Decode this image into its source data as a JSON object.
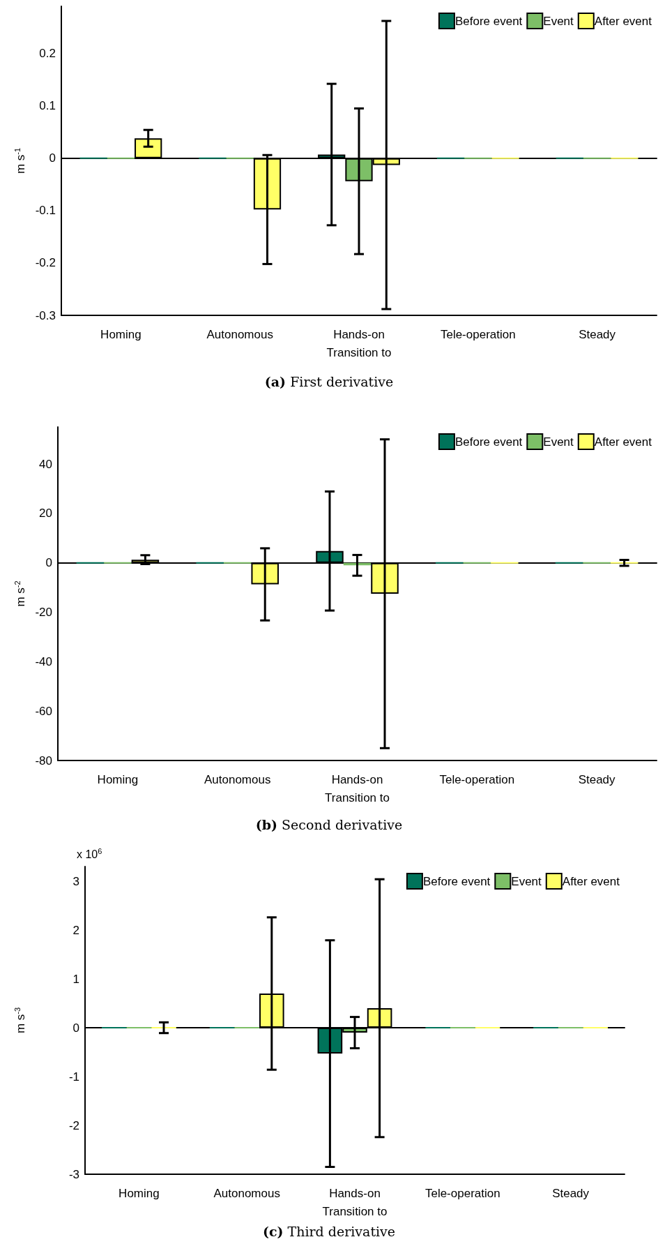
{
  "chart_data": [
    {
      "type": "bar",
      "title": "(a) First derivative",
      "ylabel": "m s$^{-1}$",
      "categories": [
        "Homing",
        "Autonomous",
        "Hands-on\nTransition to",
        "Tele-operation",
        "Steady"
      ],
      "series": [
        {
          "name": "Before event",
          "color": "#00735a",
          "values": [
            0,
            0,
            0.007,
            0,
            0
          ],
          "errors": [
            null,
            null,
            0.135,
            null,
            null
          ]
        },
        {
          "name": "Event",
          "color": "#7dbf67",
          "values": [
            0,
            0,
            -0.044,
            0,
            0
          ],
          "errors": [
            null,
            null,
            0.139,
            null,
            null
          ]
        },
        {
          "name": "After event",
          "color": "#ffff66",
          "values": [
            0.038,
            -0.098,
            -0.013,
            0,
            0
          ],
          "errors": [
            0.016,
            0.104,
            0.275,
            null,
            null
          ]
        }
      ],
      "ylim": [
        -0.3,
        0.29
      ],
      "yticks": [
        -0.3,
        -0.2,
        -0.1,
        0,
        0.1,
        0.2
      ],
      "legend": "top right"
    },
    {
      "type": "bar",
      "title": "(b) Second derivative",
      "ylabel": "m s$^{-2}$",
      "categories": [
        "Homing",
        "Autonomous",
        "Hands-on\nTransition to",
        "Tele-operation",
        "Steady"
      ],
      "series": [
        {
          "name": "Before event",
          "color": "#00735a",
          "values": [
            0,
            0,
            4.8,
            0,
            0
          ],
          "errors": [
            null,
            null,
            24.1,
            null,
            null
          ]
        },
        {
          "name": "Event",
          "color": "#7dbf67",
          "values": [
            0,
            0,
            -1,
            0,
            0
          ],
          "errors": [
            null,
            null,
            4.2,
            null,
            null
          ]
        },
        {
          "name": "After event",
          "color": "#ffff66",
          "values": [
            1.3,
            -8.7,
            -12.5,
            0,
            0
          ],
          "errors": [
            1.8,
            14.6,
            62.5,
            null,
            1.2
          ]
        }
      ],
      "ylim": [
        -80,
        55
      ],
      "yticks": [
        -80,
        -60,
        -40,
        -20,
        0,
        20,
        40
      ],
      "legend": "top right"
    },
    {
      "type": "bar",
      "title": "(c) Third derivative",
      "ylabel": "m s$^{-3}$",
      "annotations": [
        "x 10$^{6}$"
      ],
      "categories": [
        "Homing",
        "Autonomous",
        "Hands-on\nTransition to",
        "Tele-operation",
        "Steady"
      ],
      "series": [
        {
          "name": "Before event",
          "color": "#00735a",
          "values": [
            0,
            0,
            -0.53,
            0,
            0
          ],
          "errors": [
            null,
            null,
            2.32,
            null,
            null
          ]
        },
        {
          "name": "Event",
          "color": "#7dbf67",
          "values": [
            0,
            0,
            -0.1,
            0,
            0
          ],
          "errors": [
            null,
            null,
            0.32,
            null,
            null
          ]
        },
        {
          "name": "After event",
          "color": "#ffff66",
          "values": [
            0,
            0.7,
            0.4,
            0,
            0
          ],
          "errors": [
            0.11,
            1.56,
            2.64,
            null,
            null
          ]
        }
      ],
      "ylim": [
        -3,
        3.3
      ],
      "yticks": [
        -3,
        -2,
        -1,
        0,
        1,
        2,
        3
      ],
      "legend": "top right"
    }
  ]
}
